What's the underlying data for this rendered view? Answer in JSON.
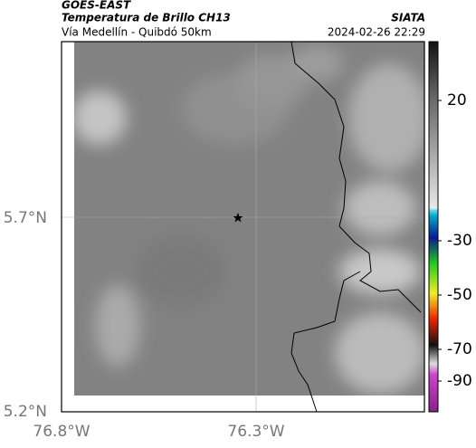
{
  "header": {
    "source": "GOES-EAST",
    "product": "Temperatura de Brillo CH13",
    "region": "Vía Medellín - Quibdó 50km",
    "agency": "SIATA",
    "timestamp": "2024-02-26 22:29"
  },
  "map": {
    "lat_ticks": [
      "5.7°N",
      "5.2°N"
    ],
    "lon_ticks": [
      "76.8°W",
      "76.3°W"
    ]
  },
  "colorbar": {
    "ticks": [
      "20",
      "-30",
      "-50",
      "-70",
      "-90"
    ]
  }
}
